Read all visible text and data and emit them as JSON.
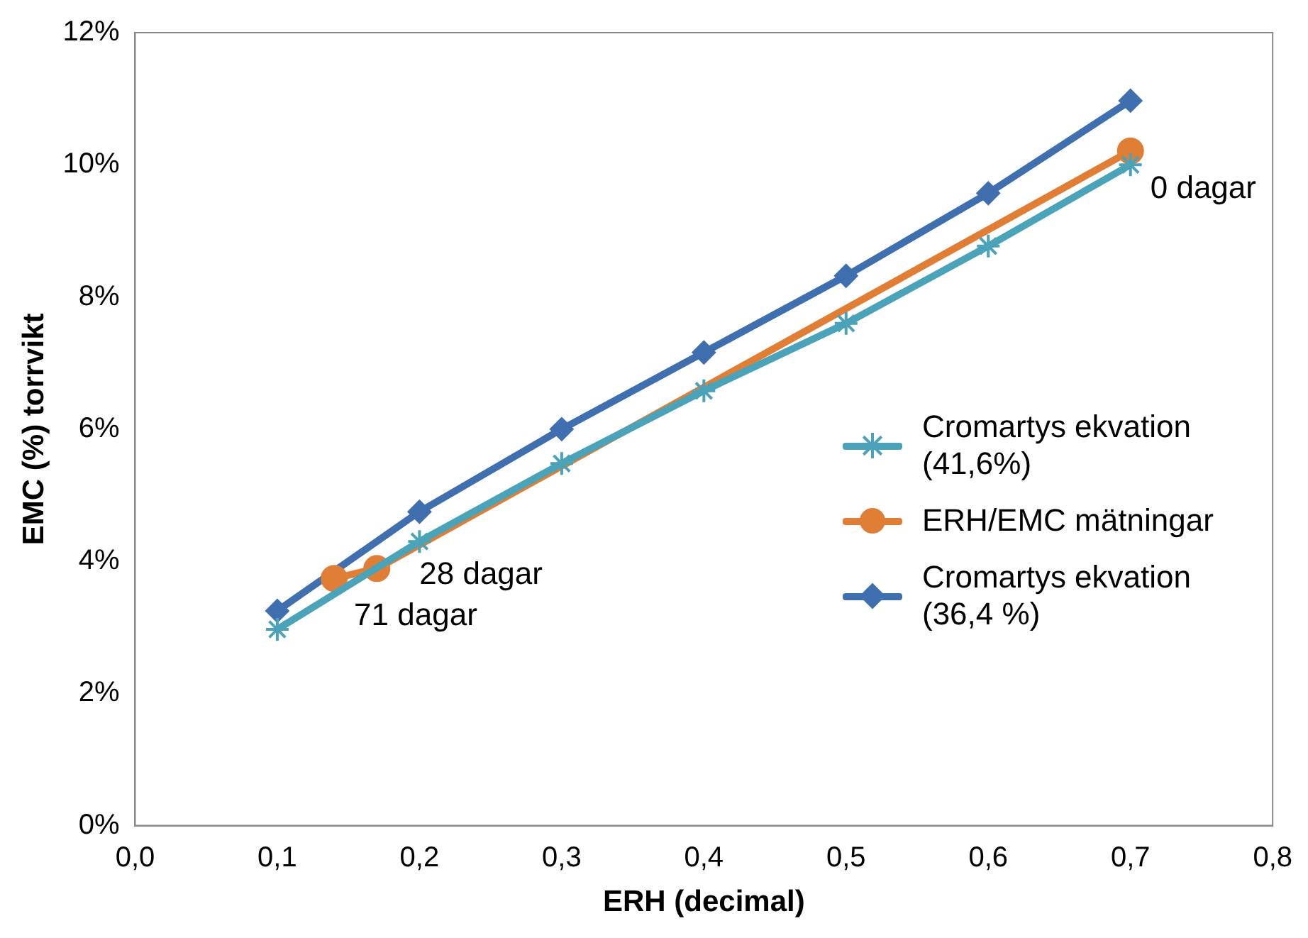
{
  "chart_data": {
    "type": "line",
    "xlabel": "ERH (decimal)",
    "ylabel": "EMC (%) torrvikt",
    "xlim": [
      0,
      0.8
    ],
    "xticks": [
      {
        "value": 0,
        "label": "0,0"
      },
      {
        "value": 0.1,
        "label": "0,1"
      },
      {
        "value": 0.2,
        "label": "0,2"
      },
      {
        "value": 0.3,
        "label": "0,3"
      },
      {
        "value": 0.4,
        "label": "0,4"
      },
      {
        "value": 0.5,
        "label": "0,5"
      },
      {
        "value": 0.6,
        "label": "0,6"
      },
      {
        "value": 0.7,
        "label": "0,7"
      },
      {
        "value": 0.8,
        "label": "0,8"
      }
    ],
    "ylim": [
      0,
      12
    ],
    "yticks": [
      {
        "value": 0,
        "label": "0%"
      },
      {
        "value": 2,
        "label": "2%"
      },
      {
        "value": 4,
        "label": "4%"
      },
      {
        "value": 6,
        "label": "6%"
      },
      {
        "value": 8,
        "label": "8%"
      },
      {
        "value": 10,
        "label": "10%"
      },
      {
        "value": 12,
        "label": "12%"
      }
    ],
    "grid": false,
    "legend": "right",
    "line_style": "solid",
    "series": [
      {
        "name": "Cromartys ekvation (41,6%)",
        "color": "#4aa3b8",
        "marker": "cross",
        "x": [
          0.1,
          0.2,
          0.3,
          0.4,
          0.5,
          0.6,
          0.7
        ],
        "values": [
          2.97,
          4.3,
          5.48,
          6.58,
          7.6,
          8.77,
          10.0
        ]
      },
      {
        "name": "ERH/EMC mätningar",
        "color": "#e07e35",
        "marker": "circle",
        "x": [
          0.14,
          0.17,
          0.7
        ],
        "values": [
          3.74,
          3.89,
          10.21
        ]
      },
      {
        "name": "Cromartys ekvation (36,4 %)",
        "color": "#3f6faf",
        "marker": "diamond",
        "x": [
          0.1,
          0.2,
          0.3,
          0.4,
          0.5,
          0.6,
          0.7
        ],
        "values": [
          3.25,
          4.75,
          6.0,
          7.16,
          8.32,
          9.57,
          10.97
        ]
      }
    ],
    "annotations": [
      {
        "text": "71 dagar",
        "x": 0.14,
        "y": 3.74
      },
      {
        "text": "28 dagar",
        "x": 0.17,
        "y": 3.89
      },
      {
        "text": "0 dagar",
        "x": 0.7,
        "y": 10.21
      }
    ]
  }
}
